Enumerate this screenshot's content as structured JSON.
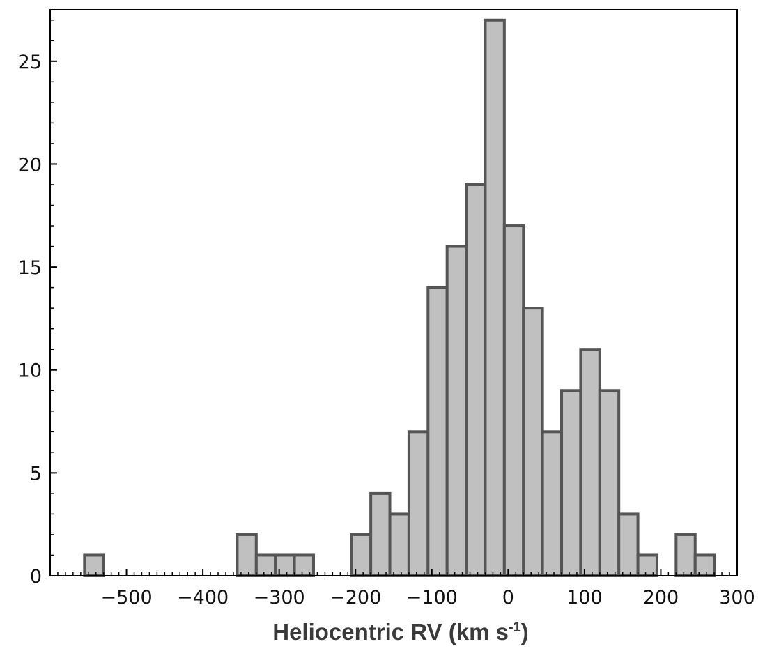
{
  "chart_data": {
    "type": "bar",
    "title": "",
    "xlabel": "Heliocentric RV  (km s",
    "xlabel_sup": "-1",
    "xlabel_close": ")",
    "ylabel": "",
    "xlim": [
      -600,
      300
    ],
    "ylim": [
      0,
      27.5
    ],
    "bin_width": 25,
    "bar_color": "#c0c0c0",
    "edge_color": "#555555",
    "grid": false,
    "xticks": [
      -500,
      -400,
      -300,
      -200,
      -100,
      0,
      100,
      200,
      300
    ],
    "xtick_labels": [
      "−500",
      "−400",
      "−300",
      "−200",
      "−100",
      "0",
      "100",
      "200",
      "300"
    ],
    "yticks": [
      0,
      5,
      10,
      15,
      20,
      25
    ],
    "ytick_labels": [
      "0",
      "5",
      "10",
      "15",
      "20",
      "25"
    ],
    "bins": [
      {
        "start": -555,
        "count": 1
      },
      {
        "start": -355,
        "count": 2
      },
      {
        "start": -330,
        "count": 1
      },
      {
        "start": -305,
        "count": 1
      },
      {
        "start": -280,
        "count": 1
      },
      {
        "start": -205,
        "count": 2
      },
      {
        "start": -180,
        "count": 4
      },
      {
        "start": -155,
        "count": 3
      },
      {
        "start": -130,
        "count": 7
      },
      {
        "start": -105,
        "count": 14
      },
      {
        "start": -80,
        "count": 16
      },
      {
        "start": -55,
        "count": 19
      },
      {
        "start": -30,
        "count": 27
      },
      {
        "start": -5,
        "count": 17
      },
      {
        "start": 20,
        "count": 13
      },
      {
        "start": 45,
        "count": 7
      },
      {
        "start": 70,
        "count": 9
      },
      {
        "start": 95,
        "count": 11
      },
      {
        "start": 120,
        "count": 9
      },
      {
        "start": 145,
        "count": 3
      },
      {
        "start": 170,
        "count": 1
      },
      {
        "start": 220,
        "count": 2
      },
      {
        "start": 245,
        "count": 1
      }
    ]
  }
}
